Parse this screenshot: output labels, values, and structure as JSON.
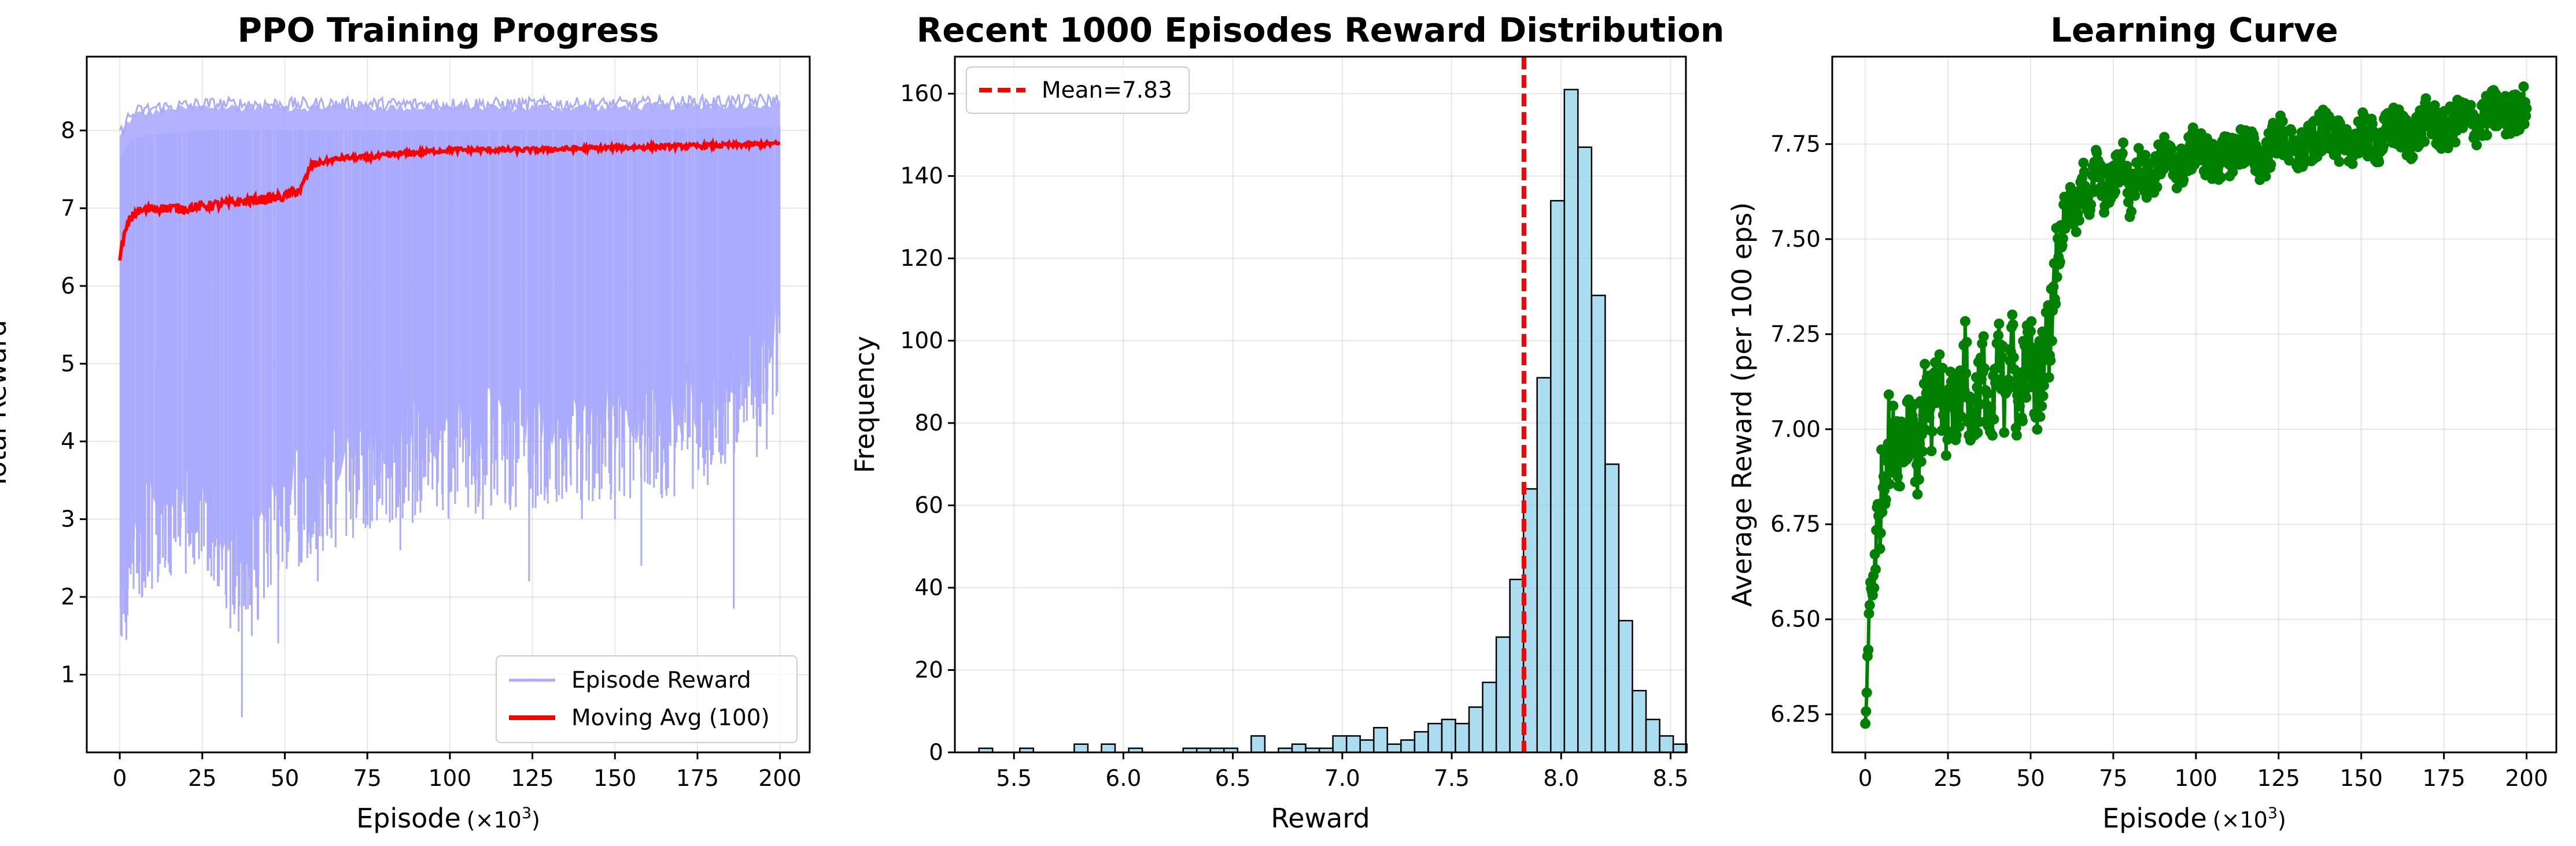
{
  "chart_data": [
    {
      "type": "line",
      "title": "PPO Training Progress",
      "xlabel": "Episode",
      "xlabel_unit": "(×10",
      "xlabel_exp": "3",
      "xlabel_close": ")",
      "ylabel": "Total Reward",
      "xlim": [
        -10,
        209
      ],
      "ylim": [
        0,
        8.95
      ],
      "xticks": [
        0,
        25,
        50,
        75,
        100,
        125,
        150,
        175,
        200
      ],
      "yticks": [
        1,
        2,
        3,
        4,
        5,
        6,
        7,
        8
      ],
      "grid": true,
      "legend_position": "lower-right",
      "series": [
        {
          "name": "Episode Reward",
          "color": "#aaaaff",
          "upper_envelope": [
            [
              0,
              7.9
            ],
            [
              2,
              8.1
            ],
            [
              5,
              8.2
            ],
            [
              10,
              8.25
            ],
            [
              25,
              8.3
            ],
            [
              50,
              8.3
            ],
            [
              100,
              8.3
            ],
            [
              150,
              8.3
            ],
            [
              200,
              8.35
            ]
          ],
          "lower_envelope": [
            [
              0,
              2.0
            ],
            [
              5,
              3.0
            ],
            [
              10,
              3.3
            ],
            [
              25,
              3.5
            ],
            [
              37,
              2.5
            ],
            [
              50,
              3.5
            ],
            [
              75,
              4.0
            ],
            [
              100,
              4.2
            ],
            [
              125,
              4.3
            ],
            [
              150,
              4.4
            ],
            [
              175,
              4.5
            ],
            [
              200,
              5.6
            ]
          ],
          "dips": [
            [
              1,
              2.1
            ],
            [
              2,
              1.45
            ],
            [
              4,
              2.5
            ],
            [
              11,
              2.8
            ],
            [
              20,
              2.3
            ],
            [
              28,
              2.7
            ],
            [
              37,
              0.45
            ],
            [
              40,
              1.5
            ],
            [
              48,
              1.4
            ],
            [
              55,
              2.9
            ],
            [
              60,
              2.2
            ],
            [
              70,
              3.0
            ],
            [
              85,
              2.6
            ],
            [
              110,
              3.0
            ],
            [
              124,
              2.2
            ],
            [
              140,
              3.0
            ],
            [
              150,
              3.0
            ],
            [
              158,
              2.4
            ],
            [
              163,
              3.6
            ],
            [
              172,
              3.9
            ],
            [
              186,
              1.85
            ],
            [
              193,
              3.8
            ],
            [
              196,
              3.9
            ]
          ]
        },
        {
          "name": "Moving Avg (100)",
          "color": "#ff0000",
          "points": [
            [
              0,
              6.3
            ],
            [
              1,
              6.6
            ],
            [
              3,
              6.85
            ],
            [
              5,
              6.95
            ],
            [
              10,
              7.0
            ],
            [
              20,
              7.0
            ],
            [
              30,
              7.05
            ],
            [
              40,
              7.1
            ],
            [
              50,
              7.15
            ],
            [
              55,
              7.25
            ],
            [
              58,
              7.55
            ],
            [
              62,
              7.6
            ],
            [
              68,
              7.65
            ],
            [
              75,
              7.65
            ],
            [
              85,
              7.7
            ],
            [
              100,
              7.75
            ],
            [
              125,
              7.75
            ],
            [
              150,
              7.78
            ],
            [
              175,
              7.8
            ],
            [
              200,
              7.83
            ]
          ]
        }
      ]
    },
    {
      "type": "bar",
      "subtype": "histogram",
      "title": "Recent 1000 Episodes Reward Distribution",
      "xlabel": "Reward",
      "ylabel": "Frequency",
      "xlim": [
        5.23,
        8.57
      ],
      "ylim": [
        0,
        169
      ],
      "xticks": [
        5.5,
        6.0,
        6.5,
        7.0,
        7.5,
        8.0,
        8.5
      ],
      "xticklabels": [
        "5.5",
        "6.0",
        "6.5",
        "7.0",
        "7.5",
        "8.0",
        "8.5"
      ],
      "yticks": [
        0,
        20,
        40,
        60,
        80,
        100,
        120,
        140,
        160
      ],
      "grid": true,
      "legend_position": "top-left",
      "bar_color": "#87ceeb",
      "bin_start": 5.34,
      "bin_width": 0.0622,
      "values": [
        1,
        0,
        0,
        1,
        0,
        0,
        0,
        2,
        0,
        2,
        0,
        1,
        0,
        0,
        0,
        1,
        1,
        1,
        1,
        0,
        4,
        0,
        1,
        2,
        1,
        1,
        4,
        4,
        3,
        6,
        2,
        3,
        5,
        7,
        8,
        7,
        11,
        17,
        28,
        42,
        64,
        91,
        134,
        161,
        147,
        111,
        70,
        32,
        15,
        8,
        4,
        2
      ],
      "mean_line": {
        "label": "Mean=7.83",
        "value": 7.83,
        "color": "#ff0000"
      }
    },
    {
      "type": "line",
      "title": "Learning Curve",
      "xlabel": "Episode",
      "xlabel_unit": "(×10",
      "xlabel_exp": "3",
      "xlabel_close": ")",
      "ylabel": "Average Reward (per 100 eps)",
      "xlim": [
        -10,
        209
      ],
      "ylim": [
        6.15,
        7.98
      ],
      "xticks": [
        0,
        25,
        50,
        75,
        100,
        125,
        150,
        175,
        200
      ],
      "yticks": [
        6.25,
        6.5,
        6.75,
        7.0,
        7.25,
        7.5,
        7.75
      ],
      "yticklabels": [
        "6.25",
        "6.50",
        "6.75",
        "7.00",
        "7.25",
        "7.50",
        "7.75"
      ],
      "grid": true,
      "series": [
        {
          "color": "#008000",
          "points": [
            [
              0,
              6.22
            ],
            [
              0.5,
              6.35
            ],
            [
              1,
              6.45
            ],
            [
              1.5,
              6.6
            ],
            [
              2,
              6.55
            ],
            [
              3,
              6.7
            ],
            [
              4,
              6.75
            ],
            [
              5,
              6.85
            ],
            [
              6,
              6.9
            ],
            [
              7,
              7.0
            ],
            [
              8,
              6.9
            ],
            [
              9,
              7.05
            ],
            [
              10,
              6.95
            ],
            [
              12,
              7.0
            ],
            [
              14,
              7.05
            ],
            [
              16,
              6.9
            ],
            [
              18,
              7.1
            ],
            [
              20,
              7.0
            ],
            [
              22,
              7.15
            ],
            [
              24,
              7.0
            ],
            [
              26,
              7.1
            ],
            [
              28,
              7.05
            ],
            [
              30,
              7.2
            ],
            [
              32,
              7.0
            ],
            [
              34,
              7.1
            ],
            [
              36,
              7.15
            ],
            [
              38,
              6.95
            ],
            [
              40,
              7.2
            ],
            [
              42,
              7.1
            ],
            [
              44,
              7.25
            ],
            [
              46,
              7.05
            ],
            [
              48,
              7.15
            ],
            [
              50,
              7.2
            ],
            [
              52,
              7.1
            ],
            [
              54,
              7.2
            ],
            [
              56,
              7.25
            ],
            [
              57,
              7.4
            ],
            [
              58,
              7.45
            ],
            [
              59,
              7.5
            ],
            [
              60,
              7.55
            ],
            [
              62,
              7.6
            ],
            [
              64,
              7.55
            ],
            [
              66,
              7.65
            ],
            [
              68,
              7.6
            ],
            [
              70,
              7.7
            ],
            [
              72,
              7.62
            ],
            [
              75,
              7.65
            ],
            [
              78,
              7.72
            ],
            [
              80,
              7.6
            ],
            [
              83,
              7.7
            ],
            [
              86,
              7.65
            ],
            [
              90,
              7.72
            ],
            [
              95,
              7.68
            ],
            [
              100,
              7.75
            ],
            [
              105,
              7.7
            ],
            [
              110,
              7.72
            ],
            [
              115,
              7.75
            ],
            [
              120,
              7.7
            ],
            [
              125,
              7.78
            ],
            [
              130,
              7.72
            ],
            [
              135,
              7.75
            ],
            [
              140,
              7.8
            ],
            [
              145,
              7.73
            ],
            [
              150,
              7.78
            ],
            [
              155,
              7.75
            ],
            [
              160,
              7.8
            ],
            [
              165,
              7.76
            ],
            [
              170,
              7.82
            ],
            [
              175,
              7.78
            ],
            [
              180,
              7.82
            ],
            [
              185,
              7.8
            ],
            [
              190,
              7.84
            ],
            [
              195,
              7.82
            ],
            [
              200,
              7.86
            ]
          ],
          "noise_band": 0.08
        }
      ]
    }
  ]
}
